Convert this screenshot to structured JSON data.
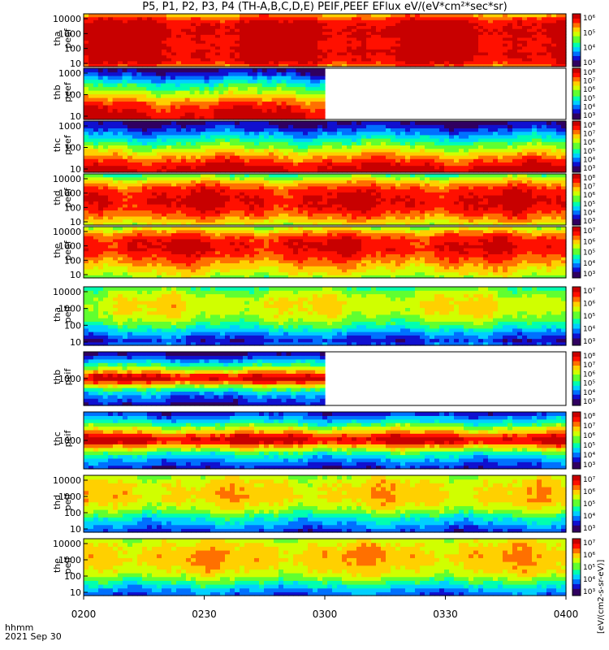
{
  "title": "P5, P1, P2, P3, P4 (TH-A,B,C,D,E) PEIF,PEEF EFlux eV/(eV*cm²*sec*sr)",
  "footer": {
    "time_label": "hhmm",
    "date_label": "2021 Sep 30"
  },
  "chart_data": {
    "type": "heatmap",
    "x_ticks": [
      "0200",
      "0230",
      "0300",
      "0330",
      "0400"
    ],
    "x_range": [
      "02:00",
      "04:00"
    ],
    "colorbar_label": "[eV/(cm2-s-sr-eV)]",
    "colormap": [
      "#300060",
      "#1010d0",
      "#0070ff",
      "#00d0ff",
      "#00ffb0",
      "#60ff30",
      "#d0ff00",
      "#ffd000",
      "#ff7000",
      "#ff1000",
      "#c80000"
    ],
    "panels": [
      {
        "probe": "tha",
        "species": "electron",
        "ylabel": [
          "tha",
          "peef"
        ],
        "yticks": [
          "10000",
          "1000",
          "100",
          "10"
        ],
        "colorbar_ticks": [
          "10⁶",
          "10⁵",
          "10⁴",
          "10³"
        ],
        "data_until": "04:00",
        "profile": "tha_peef"
      },
      {
        "probe": "thb",
        "species": "electron",
        "ylabel": [
          "thb",
          "peef"
        ],
        "yticks": [
          "1000",
          "100",
          "10"
        ],
        "colorbar_ticks": [
          "10⁸",
          "10⁷",
          "10⁶",
          "10⁵",
          "10⁴",
          "10³"
        ],
        "data_until": "03:00",
        "profile": "thb_peef"
      },
      {
        "probe": "thc",
        "species": "electron",
        "ylabel": [
          "thc",
          "peef"
        ],
        "yticks": [
          "1000",
          "100",
          "10"
        ],
        "colorbar_ticks": [
          "10⁸",
          "10⁷",
          "10⁶",
          "10⁵",
          "10⁴",
          "10³"
        ],
        "data_until": "04:00",
        "profile": "thc_peef"
      },
      {
        "probe": "thd",
        "species": "electron",
        "ylabel": [
          "thd",
          "peef"
        ],
        "yticks": [
          "10000",
          "1000",
          "100",
          "10"
        ],
        "colorbar_ticks": [
          "10⁸",
          "10⁷",
          "10⁶",
          "10⁵",
          "10⁴",
          "10³"
        ],
        "data_until": "04:00",
        "profile": "thd_peef"
      },
      {
        "probe": "the",
        "species": "electron",
        "ylabel": [
          "the",
          "peef"
        ],
        "yticks": [
          "10000",
          "1000",
          "100",
          "10"
        ],
        "colorbar_ticks": [
          "10⁷",
          "10⁶",
          "10⁵",
          "10⁴",
          "10³"
        ],
        "data_until": "04:00",
        "profile": "the_peef"
      },
      {
        "probe": "tha",
        "species": "ion",
        "ylabel": [
          "tha",
          "peif"
        ],
        "yticks": [
          "10000",
          "1000",
          "100",
          "10"
        ],
        "colorbar_ticks": [
          "10⁷",
          "10⁶",
          "10⁵",
          "10⁴",
          "10³"
        ],
        "data_until": "04:00",
        "profile": "tha_peif"
      },
      {
        "probe": "thb",
        "species": "ion",
        "ylabel": [
          "thb",
          "peif"
        ],
        "yticks": [
          "1000"
        ],
        "colorbar_ticks": [
          "10⁸",
          "10⁷",
          "10⁶",
          "10⁵",
          "10⁴",
          "10³"
        ],
        "data_until": "03:00",
        "profile": "thb_peif"
      },
      {
        "probe": "thc",
        "species": "ion",
        "ylabel": [
          "thc",
          "peif"
        ],
        "yticks": [
          "1000"
        ],
        "colorbar_ticks": [
          "10⁸",
          "10⁷",
          "10⁶",
          "10⁵",
          "10⁴",
          "10³"
        ],
        "data_until": "04:00",
        "profile": "thc_peif"
      },
      {
        "probe": "thd",
        "species": "ion",
        "ylabel": [
          "thd",
          "peif"
        ],
        "yticks": [
          "10000",
          "1000",
          "100",
          "10"
        ],
        "colorbar_ticks": [
          "10⁷",
          "10⁶",
          "10⁵",
          "10⁴",
          "10³"
        ],
        "data_until": "04:00",
        "profile": "thd_peif"
      },
      {
        "probe": "the",
        "species": "ion",
        "ylabel": [
          "the",
          "peif"
        ],
        "yticks": [
          "10000",
          "1000",
          "100",
          "10"
        ],
        "colorbar_ticks": [
          "10⁷",
          "10⁶",
          "10⁵",
          "10⁴",
          "10³"
        ],
        "data_until": "04:00",
        "profile": "the_peif"
      }
    ]
  }
}
